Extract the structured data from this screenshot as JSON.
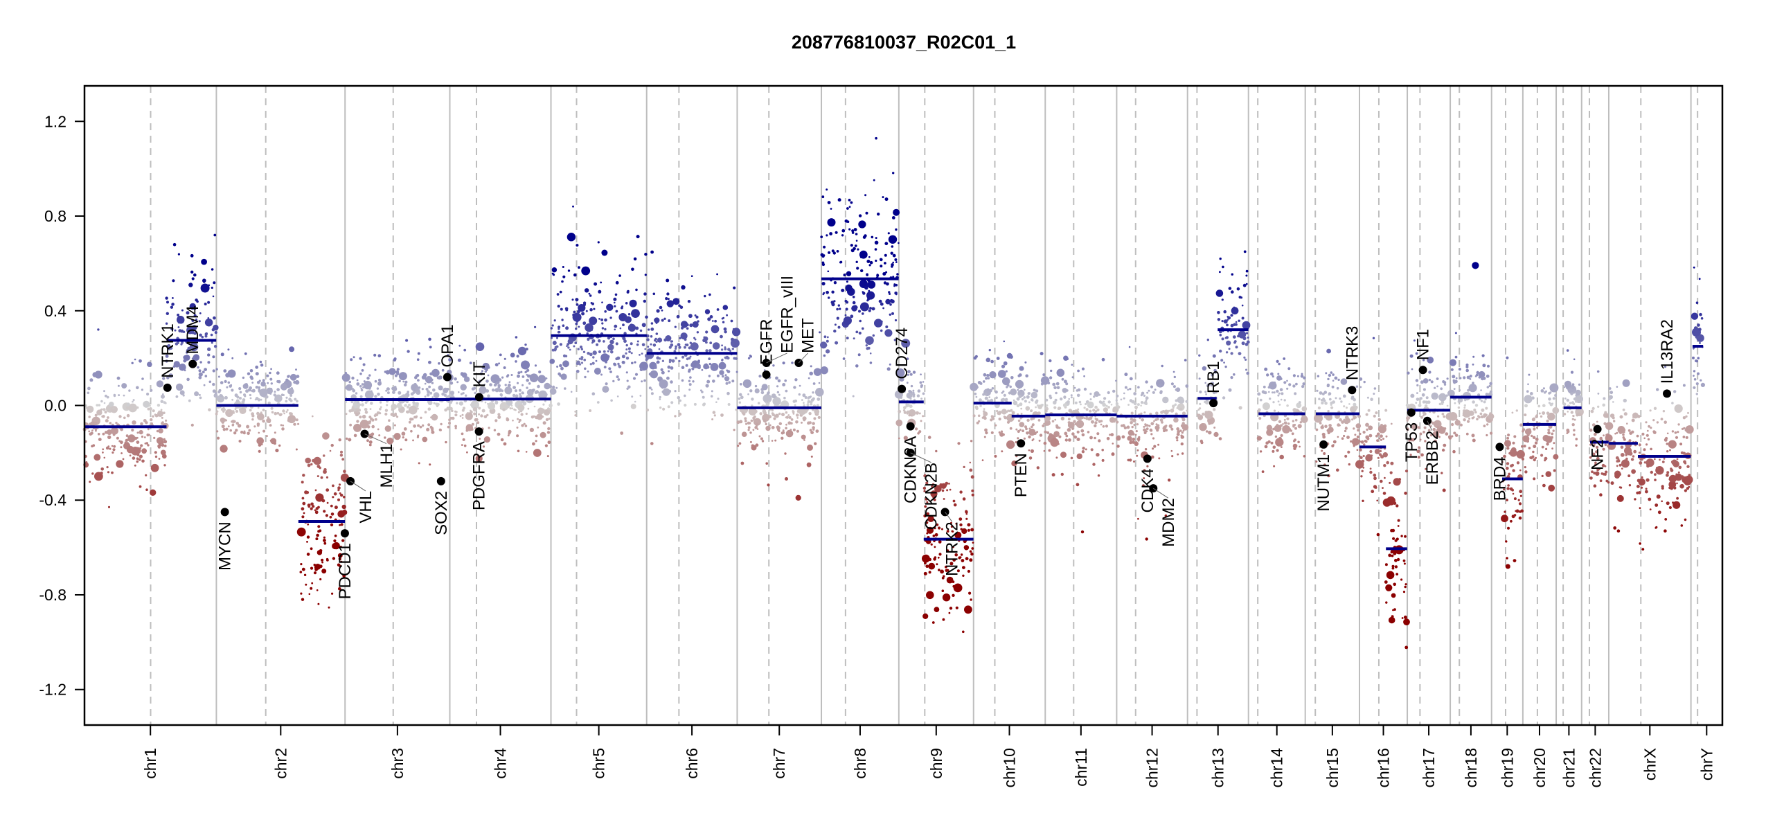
{
  "chart_data": {
    "type": "scatter",
    "title": "208776810037_R02C01_1",
    "xlabel": "",
    "ylabel": "",
    "ylim": [
      -1.35,
      1.35
    ],
    "yticks": [
      -1.2,
      -0.8,
      -0.4,
      0.0,
      0.4,
      0.8,
      1.2
    ],
    "ytick_labels": [
      "-1.2",
      "-0.8",
      "-0.4",
      "0.0",
      "0.4",
      "0.8",
      "1.2"
    ],
    "grid": false,
    "colors": {
      "gain": "#00008b",
      "neutral": "#d3d3d3",
      "loss": "#8b0000",
      "segment": "#00008b",
      "gene": "#000000",
      "chrom_line": "#bebebe"
    },
    "chromosomes": [
      {
        "name": "chr1",
        "length_mb": 249.25,
        "centromere_mb": 125.0
      },
      {
        "name": "chr2",
        "length_mb": 243.2,
        "centromere_mb": 93.3
      },
      {
        "name": "chr3",
        "length_mb": 198.0,
        "centromere_mb": 91.0
      },
      {
        "name": "chr4",
        "length_mb": 191.15,
        "centromere_mb": 50.4
      },
      {
        "name": "chr5",
        "length_mb": 180.9,
        "centromere_mb": 48.4
      },
      {
        "name": "chr6",
        "length_mb": 171.1,
        "centromere_mb": 61.0
      },
      {
        "name": "chr7",
        "length_mb": 159.1,
        "centromere_mb": 59.9
      },
      {
        "name": "chr8",
        "length_mb": 146.4,
        "centromere_mb": 45.6
      },
      {
        "name": "chr9",
        "length_mb": 141.2,
        "centromere_mb": 49.0
      },
      {
        "name": "chr10",
        "length_mb": 135.5,
        "centromere_mb": 40.2
      },
      {
        "name": "chr11",
        "length_mb": 135.0,
        "centromere_mb": 53.7
      },
      {
        "name": "chr12",
        "length_mb": 133.9,
        "centromere_mb": 35.8
      },
      {
        "name": "chr13",
        "length_mb": 115.2,
        "centromere_mb": 17.9
      },
      {
        "name": "chr14",
        "length_mb": 107.3,
        "centromere_mb": 17.6
      },
      {
        "name": "chr15",
        "length_mb": 102.5,
        "centromere_mb": 19.0
      },
      {
        "name": "chr16",
        "length_mb": 90.35,
        "centromere_mb": 36.6
      },
      {
        "name": "chr17",
        "length_mb": 81.2,
        "centromere_mb": 24.0
      },
      {
        "name": "chr18",
        "length_mb": 78.1,
        "centromere_mb": 17.2
      },
      {
        "name": "chr19",
        "length_mb": 59.1,
        "centromere_mb": 26.5
      },
      {
        "name": "chr20",
        "length_mb": 63.0,
        "centromere_mb": 27.5
      },
      {
        "name": "chr21",
        "length_mb": 48.1,
        "centromere_mb": 13.2
      },
      {
        "name": "chr22",
        "length_mb": 51.3,
        "centromere_mb": 14.7
      },
      {
        "name": "chrX",
        "length_mb": 155.3,
        "centromere_mb": 60.6
      },
      {
        "name": "chrY",
        "length_mb": 59.4,
        "centromere_mb": 12.5
      }
    ],
    "segments": [
      {
        "chr": "chr1",
        "start": 0,
        "end": 155,
        "value": -0.09
      },
      {
        "chr": "chr1",
        "start": 155,
        "end": 249,
        "value": 0.275
      },
      {
        "chr": "chr2",
        "start": 0,
        "end": 155,
        "value": 0.0
      },
      {
        "chr": "chr2",
        "start": 155,
        "end": 243,
        "value": -0.49
      },
      {
        "chr": "chr3",
        "start": 0,
        "end": 198,
        "value": 0.025
      },
      {
        "chr": "chr4",
        "start": 0,
        "end": 191,
        "value": 0.027
      },
      {
        "chr": "chr5",
        "start": 0,
        "end": 181,
        "value": 0.295
      },
      {
        "chr": "chr6",
        "start": 0,
        "end": 171,
        "value": 0.22
      },
      {
        "chr": "chr7",
        "start": 0,
        "end": 159,
        "value": -0.01
      },
      {
        "chr": "chr8",
        "start": 0,
        "end": 146,
        "value": 0.535
      },
      {
        "chr": "chr9",
        "start": 0,
        "end": 47,
        "value": 0.015
      },
      {
        "chr": "chr9",
        "start": 47,
        "end": 141,
        "value": -0.565
      },
      {
        "chr": "chr10",
        "start": 0,
        "end": 72,
        "value": 0.01
      },
      {
        "chr": "chr10",
        "start": 72,
        "end": 135.5,
        "value": -0.045
      },
      {
        "chr": "chr11",
        "start": 0,
        "end": 135,
        "value": -0.04
      },
      {
        "chr": "chr12",
        "start": 0,
        "end": 134,
        "value": -0.045
      },
      {
        "chr": "chr13",
        "start": 19,
        "end": 55,
        "value": 0.03
      },
      {
        "chr": "chr13",
        "start": 57,
        "end": 115,
        "value": 0.32
      },
      {
        "chr": "chr14",
        "start": 19,
        "end": 107,
        "value": -0.035
      },
      {
        "chr": "chr15",
        "start": 20,
        "end": 102.5,
        "value": -0.035
      },
      {
        "chr": "chr16",
        "start": 0,
        "end": 50,
        "value": -0.175
      },
      {
        "chr": "chr16",
        "start": 50,
        "end": 90,
        "value": -0.605
      },
      {
        "chr": "chr17",
        "start": 0,
        "end": 81,
        "value": -0.02
      },
      {
        "chr": "chr18",
        "start": 0,
        "end": 78,
        "value": 0.035
      },
      {
        "chr": "chr19",
        "start": 20,
        "end": 59,
        "value": -0.31
      },
      {
        "chr": "chr20",
        "start": 0,
        "end": 63,
        "value": -0.08
      },
      {
        "chr": "chr21",
        "start": 14,
        "end": 48,
        "value": -0.01
      },
      {
        "chr": "chr22",
        "start": 16,
        "end": 51,
        "value": -0.155
      },
      {
        "chr": "chrX",
        "start": 0,
        "end": 55,
        "value": -0.16
      },
      {
        "chr": "chrX",
        "start": 55,
        "end": 155,
        "value": -0.215
      },
      {
        "chr": "chrY",
        "start": 3,
        "end": 23,
        "value": 0.25
      }
    ],
    "genes": [
      {
        "name": "NTRK1",
        "chr": "chr1",
        "pos_mb": 156.8,
        "value": 0.075
      },
      {
        "name": "MDM4",
        "chr": "chr1",
        "pos_mb": 204.5,
        "value": 0.175
      },
      {
        "name": "MYCN",
        "chr": "chr2",
        "pos_mb": 16.0,
        "value": -0.45
      },
      {
        "name": "PDCD1",
        "chr": "chr2",
        "pos_mb": 242.8,
        "value": -0.54
      },
      {
        "name": "VHL",
        "chr": "chr3",
        "pos_mb": 10.2,
        "value": -0.32
      },
      {
        "name": "MLH1",
        "chr": "chr3",
        "pos_mb": 37.0,
        "value": -0.12
      },
      {
        "name": "SOX2",
        "chr": "chr3",
        "pos_mb": 181.4,
        "value": -0.32
      },
      {
        "name": "OPA1",
        "chr": "chr3",
        "pos_mb": 193.3,
        "value": 0.12
      },
      {
        "name": "KIT",
        "chr": "chr4",
        "pos_mb": 55.5,
        "value": 0.035
      },
      {
        "name": "PDGFRA",
        "chr": "chr4",
        "pos_mb": 55.1,
        "value": -0.11
      },
      {
        "name": "EGFR",
        "chr": "chr7",
        "pos_mb": 55.1,
        "value": 0.13
      },
      {
        "name": "EGFR_vIII",
        "chr": "chr7",
        "pos_mb": 55.2,
        "value": 0.18
      },
      {
        "name": "MET",
        "chr": "chr7",
        "pos_mb": 116.3,
        "value": 0.18
      },
      {
        "name": "CD274",
        "chr": "chr9",
        "pos_mb": 5.5,
        "value": 0.07
      },
      {
        "name": "CDKN2A",
        "chr": "chr9",
        "pos_mb": 21.97,
        "value": -0.088
      },
      {
        "name": "CDKN2B",
        "chr": "chr9",
        "pos_mb": 22.0,
        "value": -0.2
      },
      {
        "name": "NTRK2",
        "chr": "chr9",
        "pos_mb": 87.3,
        "value": -0.45
      },
      {
        "name": "PTEN",
        "chr": "chr10",
        "pos_mb": 89.6,
        "value": -0.16
      },
      {
        "name": "CDK4",
        "chr": "chr12",
        "pos_mb": 58.1,
        "value": -0.225
      },
      {
        "name": "MDM2",
        "chr": "chr12",
        "pos_mb": 69.2,
        "value": -0.35
      },
      {
        "name": "RB1",
        "chr": "chr13",
        "pos_mb": 48.9,
        "value": 0.01
      },
      {
        "name": "NUTM1",
        "chr": "chr15",
        "pos_mb": 34.6,
        "value": -0.165
      },
      {
        "name": "NTRK3",
        "chr": "chr15",
        "pos_mb": 88.5,
        "value": 0.065
      },
      {
        "name": "TP53",
        "chr": "chr17",
        "pos_mb": 7.5,
        "value": -0.03
      },
      {
        "name": "NF1",
        "chr": "chr17",
        "pos_mb": 29.5,
        "value": 0.15
      },
      {
        "name": "ERBB2",
        "chr": "chr17",
        "pos_mb": 37.8,
        "value": -0.065
      },
      {
        "name": "BRD4",
        "chr": "chr19",
        "pos_mb": 15.3,
        "value": -0.175
      },
      {
        "name": "NF2",
        "chr": "chr22",
        "pos_mb": 29.9,
        "value": -0.1
      },
      {
        "name": "IL13RA2",
        "chr": "chrX",
        "pos_mb": 110.0,
        "value": 0.05
      }
    ]
  }
}
